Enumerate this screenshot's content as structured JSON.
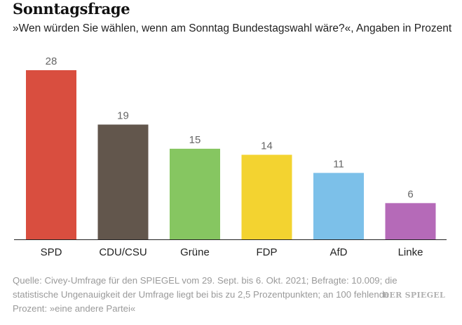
{
  "header": {
    "title": "Sonntagsfrage",
    "subtitle": "»Wen würden Sie wählen, wenn am Sonntag Bundestagswahl wäre?«, Angaben in Prozent"
  },
  "chart_data": {
    "type": "bar",
    "categories": [
      "SPD",
      "CDU/CSU",
      "Grüne",
      "FDP",
      "AfD",
      "Linke"
    ],
    "values": [
      28,
      19,
      15,
      14,
      11,
      6
    ],
    "colors": [
      "#d94e3f",
      "#62564c",
      "#86c661",
      "#f3d330",
      "#7cc0e9",
      "#b56ab8"
    ],
    "ylim": [
      0,
      28
    ],
    "grid": false
  },
  "footer": {
    "source": "Quelle: Civey-Umfrage für den SPIEGEL vom 29. Sept. bis 6. Okt. 2021; Befragte: 10.009; die statistische Ungenauigkeit der Umfrage liegt bei bis zu 2,5 Prozentpunkten; an 100 fehlende Prozent: »eine andere Partei«",
    "brand": "DER SPIEGEL"
  }
}
